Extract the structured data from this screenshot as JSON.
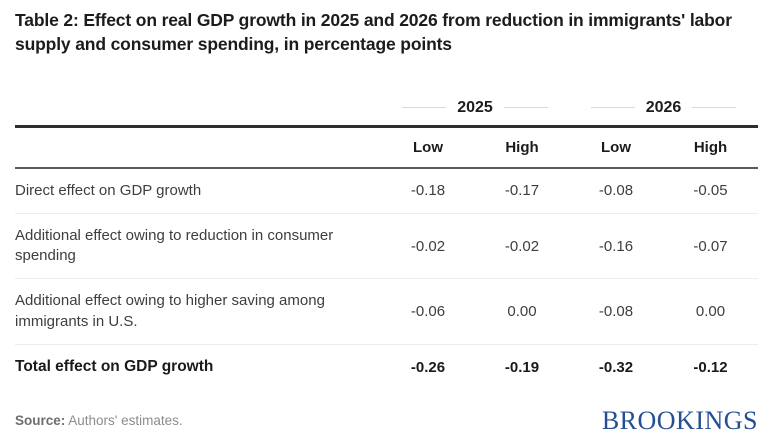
{
  "title": "Table 2: Effect on real GDP growth in 2025 and 2026 from reduction in immigrants' labor supply and consumer spending, in percentage points",
  "table": {
    "year_groups": [
      {
        "label": "2025"
      },
      {
        "label": "2026"
      }
    ],
    "sub_headers": [
      "Low",
      "High",
      "Low",
      "High"
    ],
    "rows": [
      {
        "label": "Direct effect on GDP growth",
        "values": [
          "-0.18",
          "-0.17",
          "-0.08",
          "-0.05"
        ]
      },
      {
        "label": "Additional effect owing to reduction in consumer spending",
        "values": [
          "-0.02",
          "-0.02",
          "-0.16",
          "-0.07"
        ]
      },
      {
        "label": "Additional effect owing to higher saving among immigrants in U.S.",
        "values": [
          "-0.06",
          "0.00",
          "-0.08",
          "0.00"
        ]
      },
      {
        "label": "Total effect on GDP growth",
        "values": [
          "-0.26",
          "-0.19",
          "-0.32",
          "-0.12"
        ]
      }
    ]
  },
  "footer": {
    "source_label": "Source:",
    "source_text": "Authors' estimates.",
    "brand": "BROOKINGS"
  },
  "colors": {
    "brand_blue": "#254f94",
    "title_text": "#1c1c1c",
    "body_text": "#3e3e3e",
    "thick_rule": "#2e2e2e",
    "medium_rule": "#5a5a5a",
    "light_rule": "#ececec",
    "dash": "#d8d8d8",
    "source_gray": "#8c8c8c"
  },
  "chart_data": {
    "type": "table",
    "title": "Table 2: Effect on real GDP growth in 2025 and 2026 from reduction in immigrants' labor supply and consumer spending, in percentage points",
    "column_groups": [
      "2025",
      "2026"
    ],
    "columns": [
      "2025 Low",
      "2025 High",
      "2026 Low",
      "2026 High"
    ],
    "rows": [
      {
        "label": "Direct effect on GDP growth",
        "values": [
          -0.18,
          -0.17,
          -0.08,
          -0.05
        ]
      },
      {
        "label": "Additional effect owing to reduction in consumer spending",
        "values": [
          -0.02,
          -0.02,
          -0.16,
          -0.07
        ]
      },
      {
        "label": "Additional effect owing to higher saving among immigrants in U.S.",
        "values": [
          -0.06,
          0.0,
          -0.08,
          0.0
        ]
      },
      {
        "label": "Total effect on GDP growth",
        "values": [
          -0.26,
          -0.19,
          -0.32,
          -0.12
        ]
      }
    ],
    "source": "Authors' estimates.",
    "units": "percentage points"
  }
}
